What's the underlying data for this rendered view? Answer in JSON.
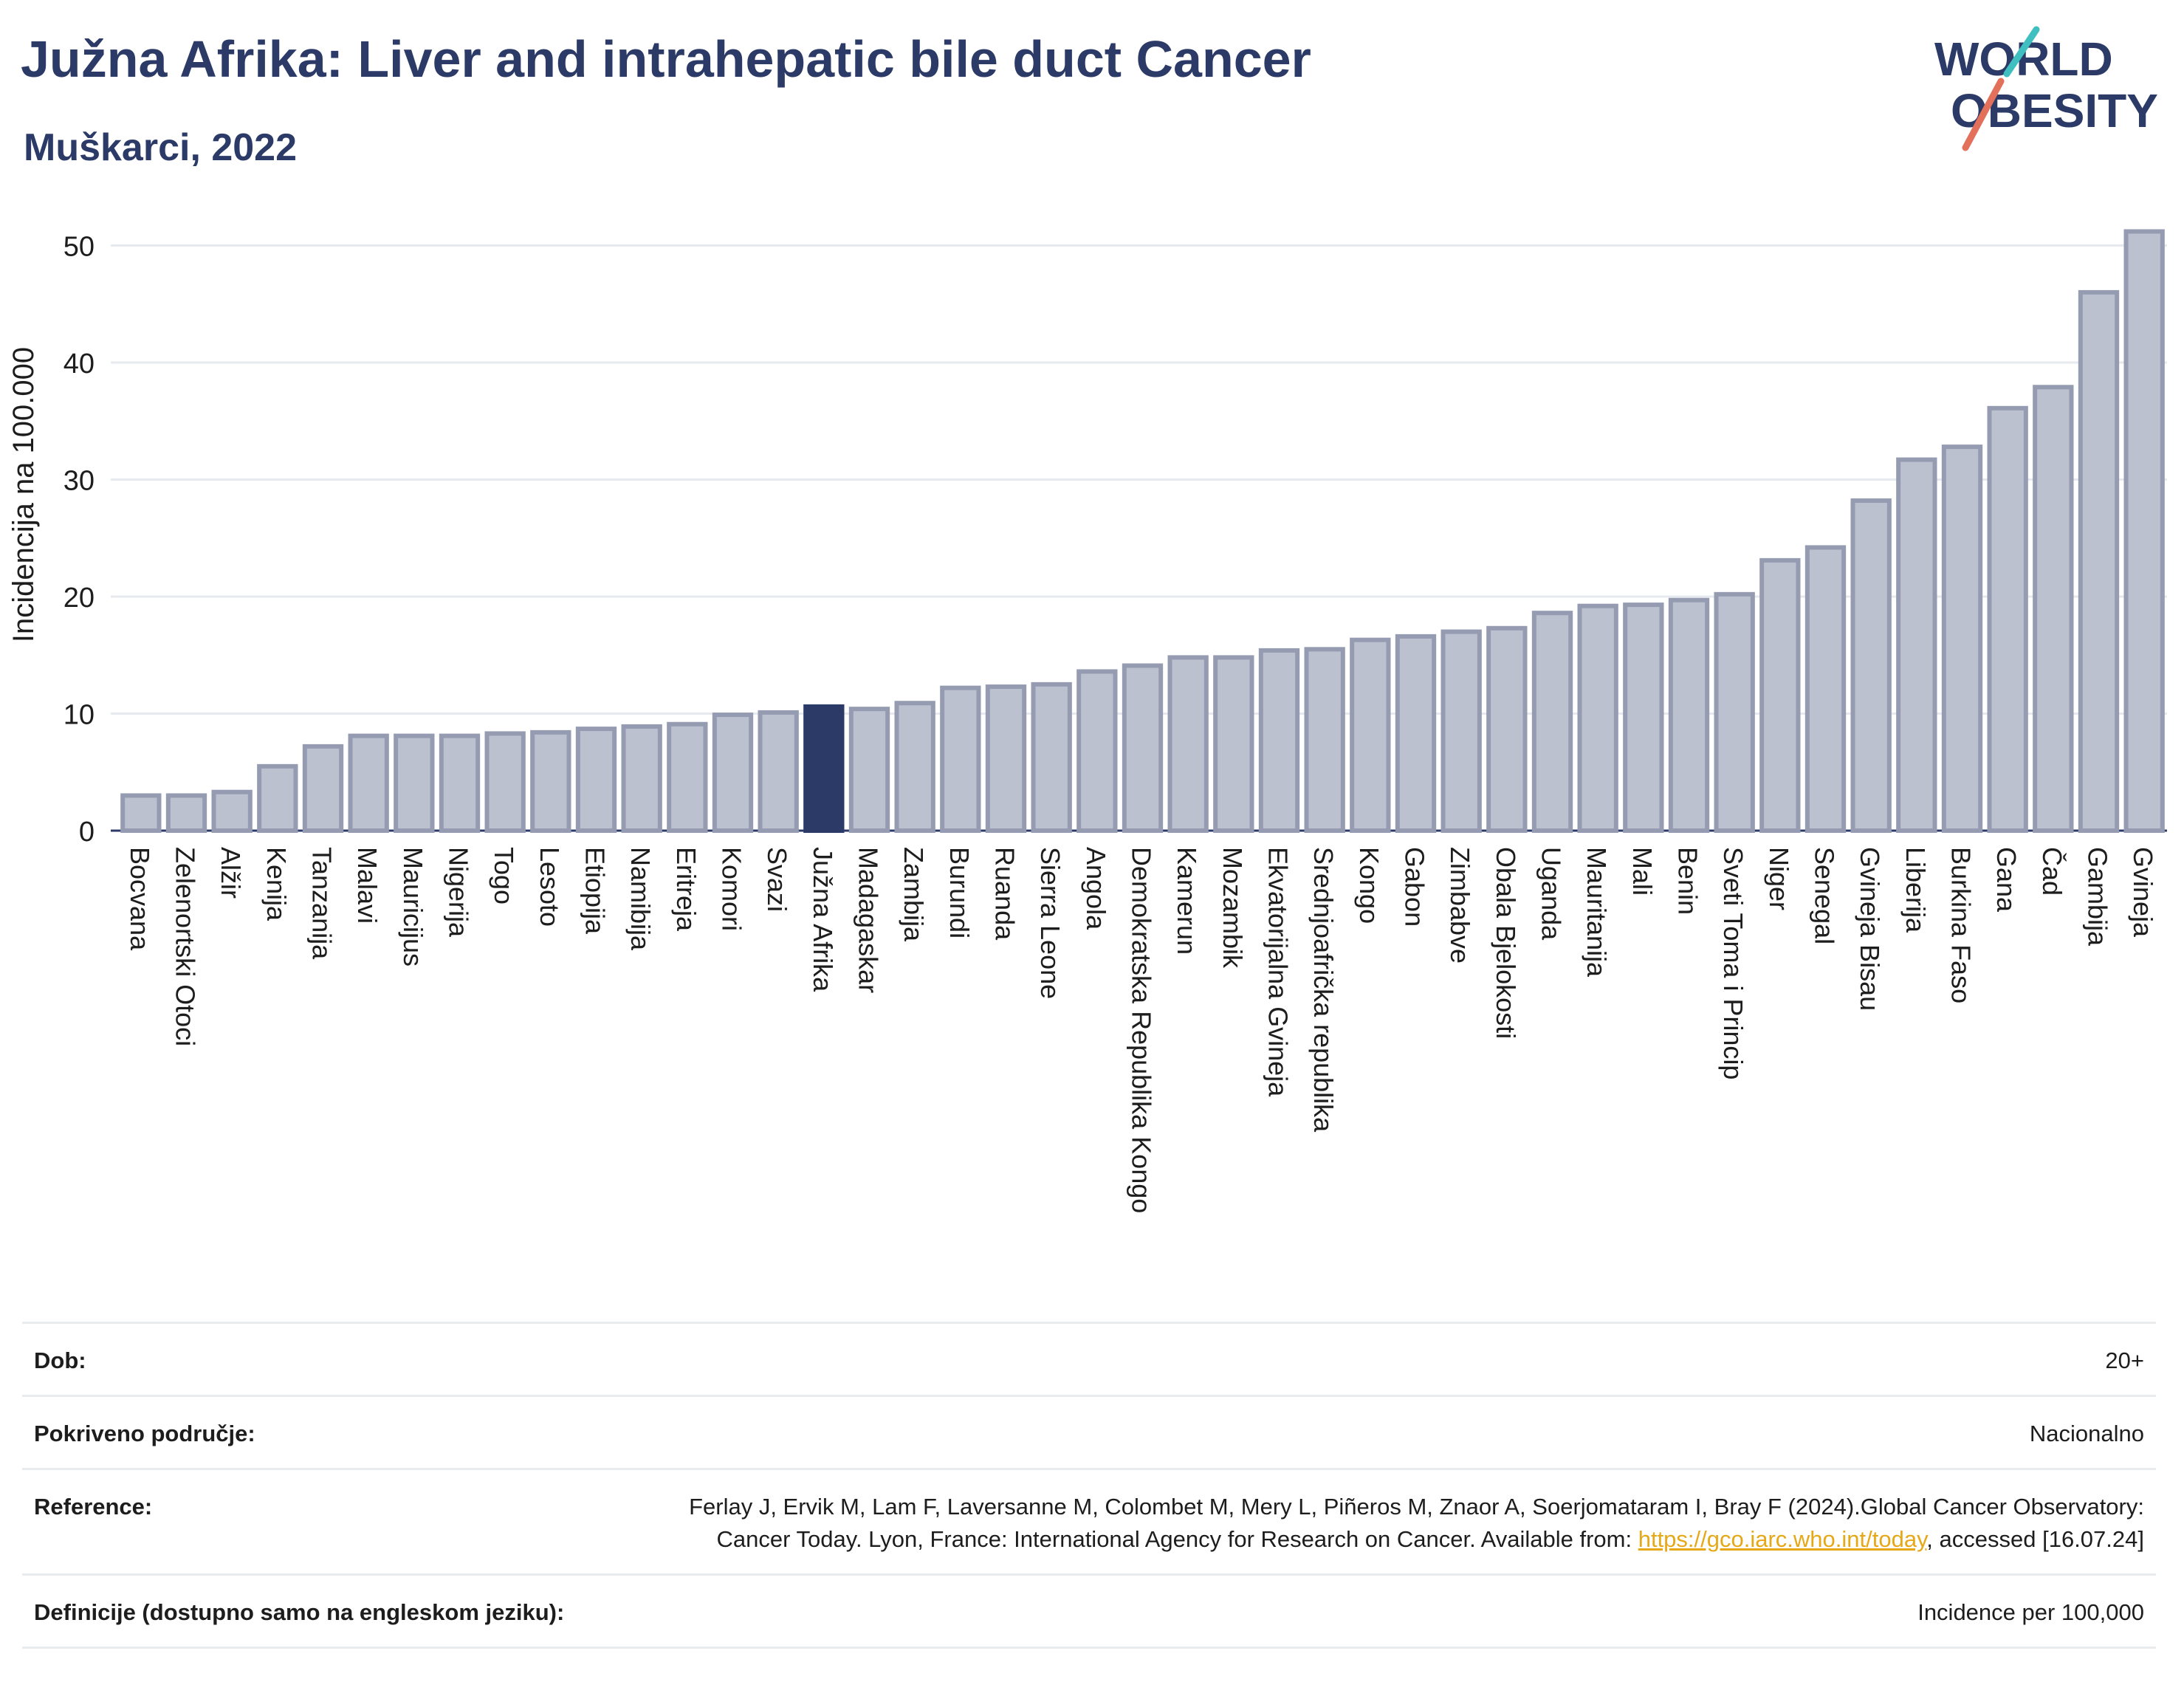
{
  "title": "Južna Afrika: Liver and intrahepatic bile duct Cancer",
  "subtitle": "Muškarci, 2022",
  "logo": {
    "line1": "WORLD",
    "line2": "OBESITY"
  },
  "colors": {
    "bar": "#bcc1cf",
    "bar_border": "#959cb2",
    "highlight": "#2b3a67",
    "title": "#2b3a67",
    "link": "#e6a817"
  },
  "chart_data": {
    "type": "bar",
    "ylabel": "Incidencija na 100.000",
    "ylim": [
      0,
      53
    ],
    "yticks": [
      0,
      10,
      20,
      30,
      40,
      50
    ],
    "grid": true,
    "highlight": "Južna Afrika",
    "categories": [
      "Bocvana",
      "Zelenortski Otoci",
      "Alžir",
      "Kenija",
      "Tanzanija",
      "Malavi",
      "Mauricijus",
      "Nigerija",
      "Togo",
      "Lesoto",
      "Etiopija",
      "Namibija",
      "Eritreja",
      "Komori",
      "Svazi",
      "Južna Afrika",
      "Madagaskar",
      "Zambija",
      "Burundi",
      "Ruanda",
      "Sierra Leone",
      "Angola",
      "Demokratska Republika Kongo",
      "Kamerun",
      "Mozambik",
      "Ekvatorijalna Gvineja",
      "Srednjoafrička republika",
      "Kongo",
      "Gabon",
      "Zimbabve",
      "Obala Bjelokosti",
      "Uganda",
      "Mauritanija",
      "Mali",
      "Benin",
      "Sveti Toma i Princip",
      "Niger",
      "Senegal",
      "Gvineja Bisau",
      "Liberija",
      "Burkina Faso",
      "Gana",
      "Čad",
      "Gambija",
      "Gvineja"
    ],
    "values": [
      3.0,
      3.0,
      3.3,
      5.5,
      7.2,
      8.1,
      8.1,
      8.1,
      8.3,
      8.4,
      8.7,
      8.9,
      9.1,
      9.9,
      10.1,
      10.6,
      10.4,
      10.9,
      12.2,
      12.3,
      12.5,
      13.6,
      14.1,
      14.8,
      14.8,
      15.4,
      15.5,
      16.3,
      16.6,
      17.0,
      17.3,
      18.6,
      19.2,
      19.3,
      19.7,
      20.2,
      23.1,
      24.2,
      28.2,
      31.7,
      32.8,
      36.1,
      37.9,
      46.0,
      51.2
    ]
  },
  "table": {
    "rows": [
      {
        "label": "Dob:",
        "value": "20+"
      },
      {
        "label": "Pokriveno područje:",
        "value": "Nacionalno"
      },
      {
        "label": "Reference:",
        "value_pre": "Ferlay J, Ervik M, Lam F, Laversanne M, Colombet M, Mery L, Piñeros M, Znaor A, Soerjomataram I, Bray F (2024).Global Cancer Observatory: Cancer Today. Lyon, France: International Agency for Research on Cancer. Available from: ",
        "link": "https://gco.iarc.who.int/today",
        "value_post": ", accessed [16.07.24]"
      },
      {
        "label": "Definicije (dostupno samo na engleskom jeziku):",
        "value": "Incidence per 100,000"
      }
    ]
  }
}
